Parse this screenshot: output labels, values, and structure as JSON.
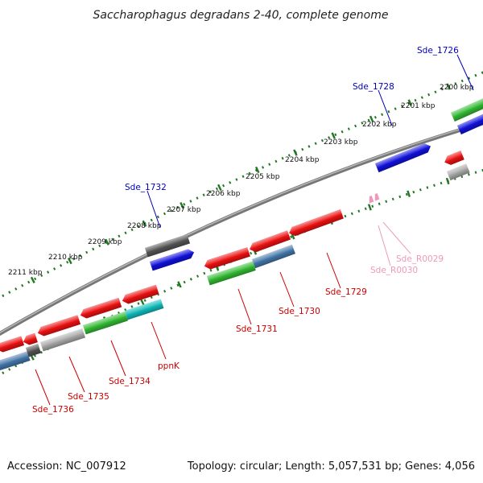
{
  "title": "Saccharophagus degradans 2-40, complete genome",
  "footer": {
    "accession": "Accession: NC_007912",
    "summary": "Topology: circular; Length: 5,057,531 bp; Genes: 4,056"
  },
  "colors": {
    "red": "#ee1111",
    "blue": "#1111dd",
    "green": "#33bb33",
    "steel": "#4477aa",
    "gray": "#aaaaaa",
    "darkgray": "#555555",
    "cyan": "#11bbbb",
    "pink": "#ee99bb",
    "tick": "#227722",
    "label_red": "#cc0000",
    "label_blue": "#0000bb",
    "label_pink": "#ee99bb"
  },
  "kbp_labels": [
    "2200 kbp",
    "2201 kbp",
    "2202 kbp",
    "2203 kbp",
    "2204 kbp",
    "2205 kbp",
    "2206 kbp",
    "2207 kbp",
    "2208 kbp",
    "2209 kbp",
    "2210 kbp",
    "2211 kbp"
  ],
  "genes": [
    {
      "label": "Sde_1726",
      "color": "blue",
      "label_color": "label_blue"
    },
    {
      "label": "Sde_1728",
      "color": "blue",
      "label_color": "label_blue"
    },
    {
      "label": "Sde_1732",
      "color": "blue",
      "label_color": "label_blue"
    },
    {
      "label": "Sde_1729",
      "color": "red",
      "label_color": "label_red"
    },
    {
      "label": "Sde_1730",
      "color": "steel",
      "label_color": "label_red"
    },
    {
      "label": "Sde_1731",
      "color": "green",
      "label_color": "label_red"
    },
    {
      "label": "ppnK",
      "color": "cyan",
      "label_color": "label_red"
    },
    {
      "label": "Sde_1734",
      "color": "green",
      "label_color": "label_red"
    },
    {
      "label": "Sde_1735",
      "color": "gray",
      "label_color": "label_red"
    },
    {
      "label": "Sde_1736",
      "color": "steel",
      "label_color": "label_red"
    },
    {
      "label": "Sde_R0029",
      "color": "pink",
      "label_color": "label_pink"
    },
    {
      "label": "Sde_R0030",
      "color": "pink",
      "label_color": "label_pink"
    }
  ]
}
